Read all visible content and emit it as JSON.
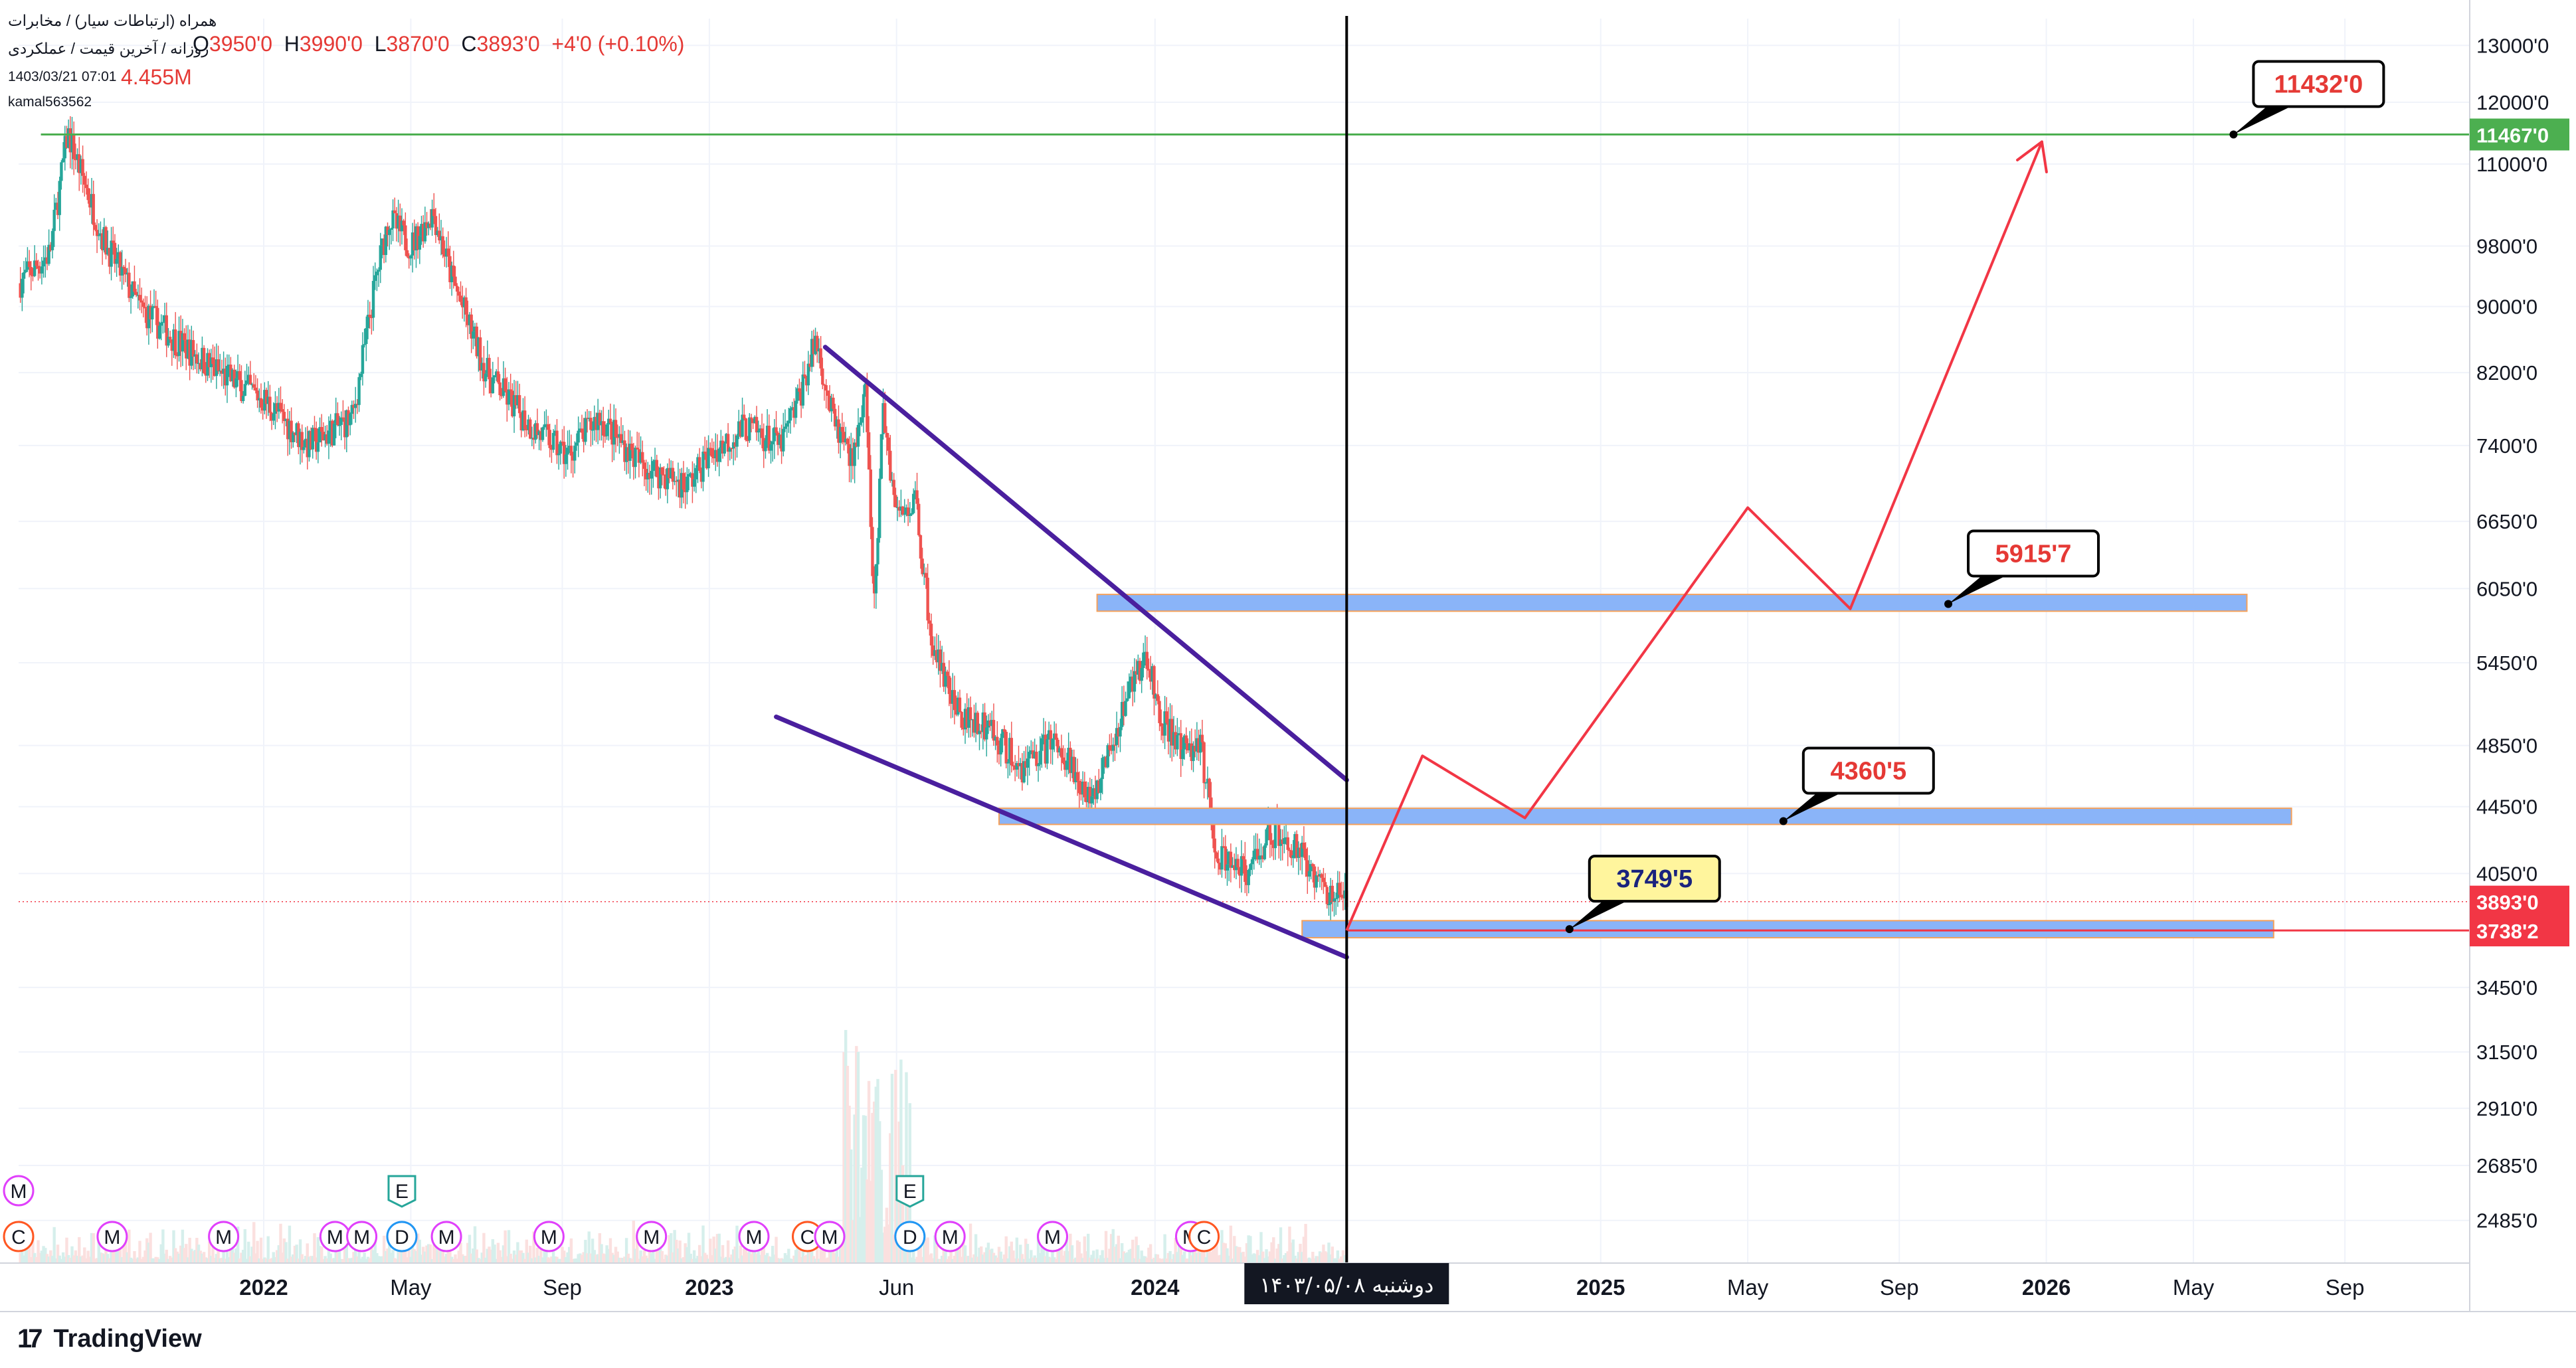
{
  "header": {
    "symbol_line": "همراه (ارتباطات سیار) / مخابرات",
    "subtitle_line": "روزانه / آخرین قیمت / عملکردی",
    "timestamp": "1403/03/21 07:01",
    "volume": "4.455M",
    "author": "kamal563562",
    "ohlc": [
      {
        "k": "O",
        "v": "3950'0"
      },
      {
        "k": "H",
        "v": "3990'0"
      },
      {
        "k": "L",
        "v": "3870'0"
      },
      {
        "k": "C",
        "v": "3893'0"
      },
      {
        "k": "",
        "v": "+4'0 (+0.10%)"
      }
    ]
  },
  "footer": {
    "brand": "TradingView"
  },
  "colors": {
    "up": "#26a69a",
    "down": "#ef5350",
    "wedge": "#4a1f9e",
    "projection": "#f23645",
    "zone_fill": "#8ab4f8",
    "zone_border": "#f5a15b",
    "resistance": "#4caf50",
    "support": "#f23645",
    "grid": "#f0f3fa"
  },
  "chart_data": {
    "type": "candlestick",
    "title": "همراه (ارتباطات سیار) / مخابرات",
    "y_scale": "log",
    "ylim": [
      2340,
      13500
    ],
    "x_range": [
      2021.45,
      2026.95
    ],
    "y_ticks": [
      "13000'0",
      "12000'0",
      "11000'0",
      "9800'0",
      "9000'0",
      "8200'0",
      "7400'0",
      "6650'0",
      "6050'0",
      "5450'0",
      "4850'0",
      "4450'0",
      "4050'0",
      "3450'0",
      "3150'0",
      "2910'0",
      "2685'0",
      "2485'0"
    ],
    "y_tick_values": [
      13000,
      12000,
      11000,
      9800,
      9000,
      8200,
      7400,
      6650,
      6050,
      5450,
      4850,
      4450,
      4050,
      3450,
      3150,
      2910,
      2685,
      2485
    ],
    "x_ticks": [
      {
        "label": "2022",
        "t": 2022.0,
        "bold": true
      },
      {
        "label": "May",
        "t": 2022.33,
        "bold": false
      },
      {
        "label": "Sep",
        "t": 2022.67,
        "bold": false
      },
      {
        "label": "2023",
        "t": 2023.0,
        "bold": true
      },
      {
        "label": "Jun",
        "t": 2023.42,
        "bold": false
      },
      {
        "label": "2024",
        "t": 2024.0,
        "bold": true
      },
      {
        "label": "2025",
        "t": 2025.0,
        "bold": true
      },
      {
        "label": "May",
        "t": 2025.33,
        "bold": false
      },
      {
        "label": "Sep",
        "t": 2025.67,
        "bold": false
      },
      {
        "label": "2026",
        "t": 2026.0,
        "bold": true
      },
      {
        "label": "May",
        "t": 2026.33,
        "bold": false
      },
      {
        "label": "Sep",
        "t": 2026.67,
        "bold": false
      }
    ],
    "price_path": [
      [
        2021.45,
        9300
      ],
      [
        2021.52,
        9700
      ],
      [
        2021.56,
        11500
      ],
      [
        2021.64,
        9900
      ],
      [
        2021.72,
        9000
      ],
      [
        2021.8,
        8600
      ],
      [
        2021.9,
        8200
      ],
      [
        2022.0,
        7900
      ],
      [
        2022.1,
        7400
      ],
      [
        2022.2,
        7700
      ],
      [
        2022.25,
        9300
      ],
      [
        2022.28,
        10200
      ],
      [
        2022.33,
        9800
      ],
      [
        2022.38,
        10300
      ],
      [
        2022.42,
        9400
      ],
      [
        2022.5,
        8200
      ],
      [
        2022.6,
        7600
      ],
      [
        2022.68,
        7300
      ],
      [
        2022.75,
        7700
      ],
      [
        2022.85,
        7200
      ],
      [
        2022.95,
        7000
      ],
      [
        2023.0,
        7300
      ],
      [
        2023.08,
        7600
      ],
      [
        2023.16,
        7400
      ],
      [
        2023.2,
        7900
      ],
      [
        2023.24,
        8600
      ],
      [
        2023.28,
        7600
      ],
      [
        2023.32,
        7300
      ],
      [
        2023.35,
        7900
      ],
      [
        2023.37,
        5900
      ],
      [
        2023.39,
        7800
      ],
      [
        2023.42,
        6700
      ],
      [
        2023.46,
        6900
      ],
      [
        2023.5,
        5600
      ],
      [
        2023.55,
        5100
      ],
      [
        2023.62,
        5000
      ],
      [
        2023.7,
        4700
      ],
      [
        2023.78,
        4900
      ],
      [
        2023.85,
        4500
      ],
      [
        2023.9,
        4800
      ],
      [
        2023.94,
        5300
      ],
      [
        2023.98,
        5500
      ],
      [
        2024.02,
        5000
      ],
      [
        2024.06,
        4800
      ],
      [
        2024.1,
        4900
      ],
      [
        2024.14,
        4150
      ],
      [
        2024.2,
        4050
      ],
      [
        2024.26,
        4300
      ],
      [
        2024.32,
        4200
      ],
      [
        2024.38,
        3950
      ],
      [
        2024.43,
        3893
      ]
    ],
    "current_price": 3893,
    "wedge_upper": [
      [
        2023.26,
        8500
      ],
      [
        2024.43,
        4620
      ]
    ],
    "wedge_lower": [
      [
        2023.15,
        5050
      ],
      [
        2024.43,
        3600
      ]
    ],
    "vertical_marker": {
      "t": 2024.43,
      "label": "دوشنبه ۱۴۰۳/۰۵/۰۸"
    },
    "projection_path": [
      [
        2024.43,
        3738
      ],
      [
        2024.6,
        4780
      ],
      [
        2024.83,
        4380
      ],
      [
        2025.33,
        6780
      ],
      [
        2025.56,
        5880
      ],
      [
        2025.99,
        11350
      ]
    ],
    "zones": [
      {
        "t0": 2023.87,
        "t1": 2026.45,
        "p_low": 5860,
        "p_high": 6000
      },
      {
        "t0": 2023.65,
        "t1": 2026.55,
        "p_low": 4340,
        "p_high": 4440
      },
      {
        "t0": 2024.33,
        "t1": 2026.51,
        "p_low": 3700,
        "p_high": 3790
      }
    ],
    "h_lines": [
      {
        "name": "resistance-line",
        "price": 11467,
        "t0": 2021.5,
        "t1": 2026.95,
        "color": "#4caf50"
      },
      {
        "name": "support-line",
        "price": 3738.2,
        "t0": 2024.43,
        "t1": 2026.95,
        "color": "#f23645"
      }
    ],
    "axis_badges": [
      {
        "name": "axis-badge-resistance",
        "label": "11467'0",
        "price": 11467,
        "color": "#4caf50"
      },
      {
        "name": "axis-badge-current",
        "label": "3893'0",
        "price": 3893,
        "color": "#f23645"
      },
      {
        "name": "axis-badge-support",
        "label": "3738'2",
        "price": 3738.2,
        "color": "#f23645"
      }
    ],
    "callouts": [
      {
        "name": "callout-11432",
        "label": "11432'0",
        "anchor_t": 2026.42,
        "anchor_p": 11467,
        "bg": "#ffffff",
        "fg": "#e53935"
      },
      {
        "name": "callout-5915",
        "label": "5915'7",
        "anchor_t": 2025.78,
        "anchor_p": 5920,
        "bg": "#ffffff",
        "fg": "#e53935"
      },
      {
        "name": "callout-4360",
        "label": "4360'5",
        "anchor_t": 2025.41,
        "anchor_p": 4360,
        "bg": "#ffffff",
        "fg": "#e53935"
      },
      {
        "name": "callout-3749",
        "label": "3749'5",
        "anchor_t": 2024.93,
        "anchor_p": 3745,
        "bg": "#fff59d",
        "fg": "#1a237e"
      }
    ],
    "events": [
      {
        "label": "M",
        "t": 2021.45,
        "row": 0,
        "color": "#e040fb"
      },
      {
        "label": "C",
        "t": 2021.45,
        "row": 1,
        "color": "#ff5722"
      },
      {
        "label": "M",
        "t": 2021.66,
        "row": 1,
        "color": "#e040fb"
      },
      {
        "label": "M",
        "t": 2021.91,
        "row": 1,
        "color": "#e040fb"
      },
      {
        "label": "M",
        "t": 2022.16,
        "row": 1,
        "color": "#e040fb"
      },
      {
        "label": "M",
        "t": 2022.22,
        "row": 1,
        "color": "#e040fb"
      },
      {
        "label": "E",
        "t": 2022.31,
        "row": 0,
        "color": "#26a69a"
      },
      {
        "label": "D",
        "t": 2022.31,
        "row": 1,
        "color": "#2196f3"
      },
      {
        "label": "M",
        "t": 2022.41,
        "row": 1,
        "color": "#e040fb"
      },
      {
        "label": "M",
        "t": 2022.64,
        "row": 1,
        "color": "#e040fb"
      },
      {
        "label": "M",
        "t": 2022.87,
        "row": 1,
        "color": "#e040fb"
      },
      {
        "label": "M",
        "t": 2023.1,
        "row": 1,
        "color": "#e040fb"
      },
      {
        "label": "C",
        "t": 2023.22,
        "row": 1,
        "color": "#ff5722"
      },
      {
        "label": "M",
        "t": 2023.27,
        "row": 1,
        "color": "#e040fb"
      },
      {
        "label": "E",
        "t": 2023.45,
        "row": 0,
        "color": "#26a69a"
      },
      {
        "label": "D",
        "t": 2023.45,
        "row": 1,
        "color": "#2196f3"
      },
      {
        "label": "M",
        "t": 2023.54,
        "row": 1,
        "color": "#e040fb"
      },
      {
        "label": "M",
        "t": 2023.77,
        "row": 1,
        "color": "#e040fb"
      },
      {
        "label": "M",
        "t": 2024.08,
        "row": 1,
        "color": "#e040fb"
      },
      {
        "label": "C",
        "t": 2024.11,
        "row": 1,
        "color": "#ff5722"
      }
    ]
  }
}
